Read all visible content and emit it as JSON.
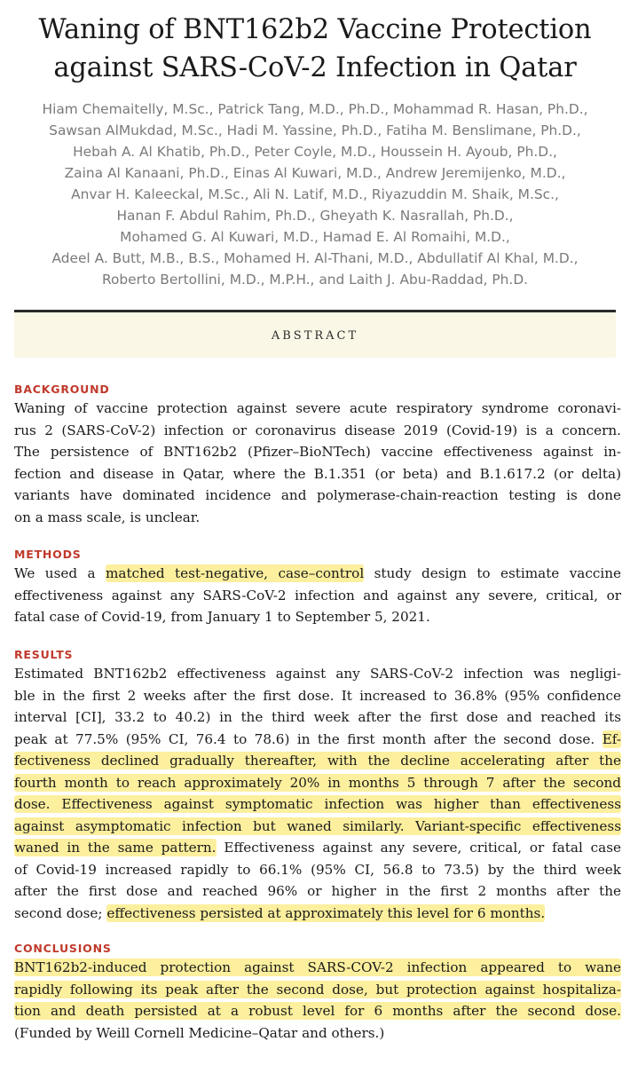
{
  "title": {
    "lines": [
      "Waning of BNT162b2 Vaccine Protection",
      "against SARS-CoV-2 Infection in Qatar"
    ]
  },
  "authors": {
    "lines": [
      "Hiam Chemaitelly, M.Sc., Patrick Tang, M.D., Ph.D., Mohammad R. Hasan, Ph.D.,",
      "Sawsan AlMukdad, M.Sc., Hadi M. Yassine, Ph.D., Fatiha M. Benslimane, Ph.D.,",
      "Hebah A. Al Khatib, Ph.D., Peter Coyle, M.D., Houssein H. Ayoub, Ph.D.,",
      "Zaina Al Kanaani, Ph.D., Einas Al Kuwari, M.D., Andrew Jeremijenko, M.D.,",
      "Anvar H. Kaleeckal, M.Sc., Ali N. Latif, M.D., Riyazuddin M. Shaik, M.Sc.,",
      "Hanan F. Abdul Rahim, Ph.D., Gheyath K. Nasrallah, Ph.D.,",
      "Mohamed G. Al Kuwari, M.D., Hamad E. Al Romaihi, M.D.,",
      "Adeel A. Butt, M.B., B.S., Mohamed H. Al-Thani, M.D., Abdullatif Al Khal, M.D.,",
      "Roberto Bertollini, M.D., M.P.H., and Laith J. Abu-Raddad, Ph.D."
    ]
  },
  "abstract_label": "ABSTRACT",
  "background": {
    "heading": "BACKGROUND",
    "lines": [
      "Waning of vaccine protection against severe acute respiratory syndrome coronavi-",
      "rus 2 (SARS-CoV-2) infection or coronavirus disease 2019 (Covid-19) is a concern.",
      "The persistence of BNT162b2 (Pfizer–BioNTech) vaccine effectiveness against in-",
      "fection and disease in Qatar, where the B.1.351 (or beta) and B.1.617.2 (or delta)",
      "variants have dominated incidence and polymerase-chain-reaction testing is done",
      "on a mass scale, is unclear."
    ]
  },
  "methods": {
    "heading": "METHODS",
    "line1_pre": "We used a ",
    "line1_hl": "matched test-negative, case–control",
    "line1_post": " study design to estimate vaccine",
    "line2": "effectiveness against any SARS-CoV-2 infection and against any severe, critical, or",
    "line3": "fatal case of Covid-19, from January 1 to September 5, 2021."
  },
  "results": {
    "heading": "RESULTS",
    "l1": "Estimated BNT162b2 effectiveness against any SARS-CoV-2 infection was negligi-",
    "l2": "ble in the first 2 weeks after the first dose. It increased to 36.8% (95% confidence",
    "l3": "interval [CI], 33.2 to 40.2) in the third week after the first dose and reached its",
    "l4_pre": "peak at 77.5% (95% CI, 76.4 to 78.6) in the first month after the second dose. ",
    "l4_hl": "Ef-",
    "l5_hl": "fectiveness declined gradually thereafter, with the decline accelerating after the",
    "l6_hl": "fourth month to reach approximately 20% in months 5 through 7 after the second",
    "l7_hl": "dose. Effectiveness against symptomatic infection was higher than effectiveness",
    "l8_hl": "against asymptomatic infection but waned similarly. Variant-specific effectiveness",
    "l9_hl": "waned in the same pattern.",
    "l9_post": " Effectiveness against any severe, critical, or fatal case",
    "l10": "of Covid-19 increased rapidly to 66.1% (95% CI, 56.8 to 73.5) by the third week",
    "l11": "after the first dose and reached 96% or higher in the first 2 months after the",
    "l12_pre": "second dose; ",
    "l12_hl": "effectiveness persisted at approximately this level for 6 months."
  },
  "conclusions": {
    "heading": "CONCLUSIONS",
    "l1_hl": "BNT162b2-induced protection against SARS-COV-2 infection appeared to wane",
    "l2_hl": "rapidly following its peak after the second dose, but protection against hospitaliza-",
    "l3_hl": "tion and death persisted at a robust level for 6 months after the second dose.",
    "l4": "(Funded by Weill Cornell Medicine–Qatar and others.)"
  },
  "colors": {
    "heading": "#c0392b",
    "highlight": "#fcef9e",
    "abstract_bar": "#faf7e6",
    "author_text": "#7a7a7a"
  }
}
